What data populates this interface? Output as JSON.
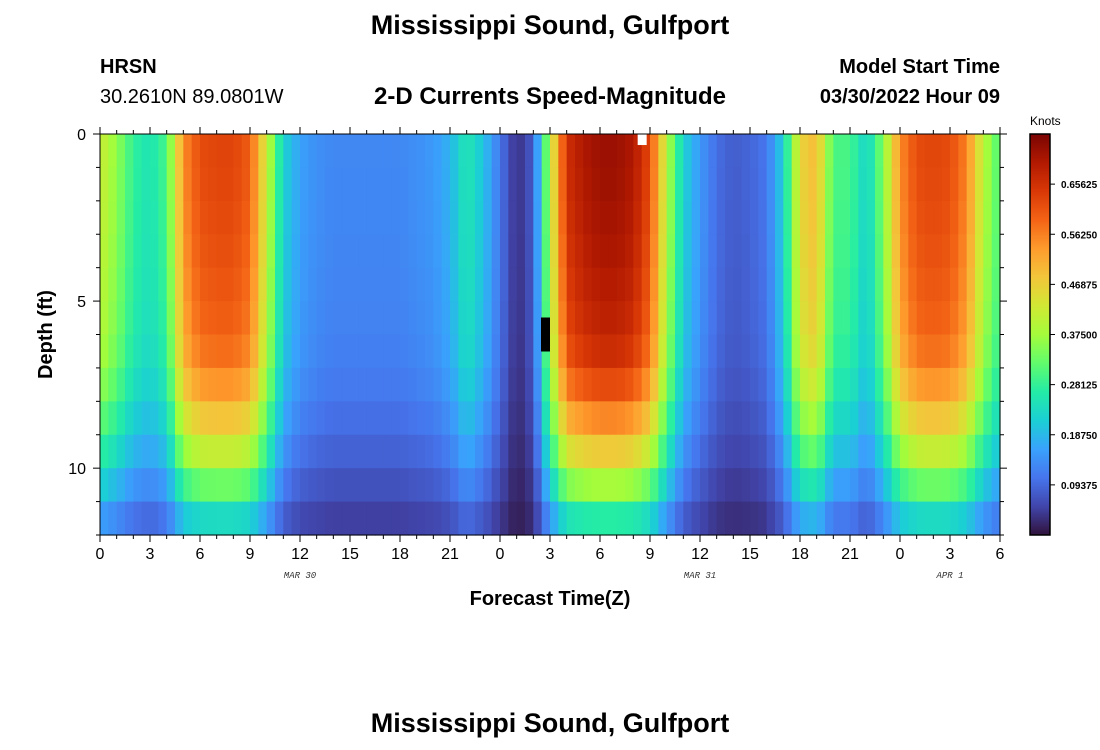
{
  "header": {
    "title": "Mississippi Sound, Gulfport",
    "station_id": "HRSN",
    "coordinates": "30.2610N  89.0801W",
    "subtitle": "2-D Currents Speed-Magnitude",
    "model_start_label": "Model Start Time",
    "model_start_value": "03/30/2022 Hour 09"
  },
  "footer": {
    "title": "Mississippi Sound, Gulfport"
  },
  "chart_data": {
    "type": "heatmap",
    "title": "2-D Currents Speed-Magnitude",
    "xlabel": "Forecast Time(Z)",
    "ylabel": "Depth (ft)",
    "x_tick_labels": [
      "0",
      "3",
      "6",
      "9",
      "12",
      "15",
      "18",
      "21",
      "0",
      "3",
      "6",
      "9",
      "12",
      "15",
      "18",
      "21",
      "0",
      "3",
      "6"
    ],
    "x_range_hours": [
      0,
      54
    ],
    "date_labels": [
      {
        "label": "MAR 30",
        "hour": 12
      },
      {
        "label": "MAR 31",
        "hour": 36
      },
      {
        "label": "APR 1",
        "hour": 51
      }
    ],
    "y_tick_labels": [
      "0",
      "5",
      "10"
    ],
    "y_range_ft": [
      0,
      12
    ],
    "colorbar": {
      "title": "Knots",
      "range": [
        0,
        0.75
      ],
      "tick_labels": [
        "0.65625",
        "0.56250",
        "0.46875",
        "0.37500",
        "0.28125",
        "0.18750",
        "0.09375"
      ],
      "tick_values": [
        0.65625,
        0.5625,
        0.46875,
        0.375,
        0.28125,
        0.1875,
        0.09375
      ],
      "colors": [
        "#30123b",
        "#4145ab",
        "#4675ed",
        "#39a2fc",
        "#1bcfd4",
        "#24eca6",
        "#61fc6c",
        "#a4fc3b",
        "#d1e834",
        "#f3c63a",
        "#fe9b2d",
        "#f36315",
        "#d93806",
        "#b11901",
        "#7a0403"
      ]
    },
    "speed_profile": {
      "hours": [
        0,
        1,
        2,
        3,
        4,
        5,
        6,
        7,
        8,
        9,
        10,
        11,
        12,
        13,
        14,
        15,
        16,
        17,
        18,
        19,
        20,
        21,
        22,
        23,
        24,
        25,
        26,
        27,
        28,
        29,
        30,
        31,
        32,
        33,
        34,
        35,
        36,
        37,
        38,
        39,
        40,
        41,
        42,
        43,
        44,
        45,
        46,
        47,
        48,
        49,
        50,
        51,
        52,
        53,
        54
      ],
      "knots": [
        0.42,
        0.36,
        0.28,
        0.25,
        0.3,
        0.55,
        0.62,
        0.63,
        0.63,
        0.6,
        0.42,
        0.22,
        0.16,
        0.14,
        0.13,
        0.13,
        0.13,
        0.13,
        0.13,
        0.14,
        0.15,
        0.18,
        0.26,
        0.2,
        0.11,
        0.03,
        0.08,
        0.4,
        0.66,
        0.7,
        0.72,
        0.72,
        0.7,
        0.62,
        0.4,
        0.22,
        0.15,
        0.1,
        0.08,
        0.09,
        0.11,
        0.22,
        0.46,
        0.5,
        0.3,
        0.3,
        0.22,
        0.35,
        0.55,
        0.62,
        0.63,
        0.62,
        0.56,
        0.4,
        0.3
      ]
    },
    "depth_factor_ft": {
      "depth": [
        0,
        2,
        4,
        6,
        7,
        8,
        9,
        10,
        11,
        12
      ],
      "factor": [
        1.0,
        0.99,
        0.97,
        0.94,
        0.9,
        0.82,
        0.72,
        0.6,
        0.45,
        0.3
      ]
    },
    "missing_cells": [
      {
        "hour": 32.5,
        "depth_ft": 0.3,
        "fill": "#ffffff"
      },
      {
        "hour": 26.7,
        "depth_ft": 6.0,
        "fill": "#000000"
      }
    ]
  }
}
